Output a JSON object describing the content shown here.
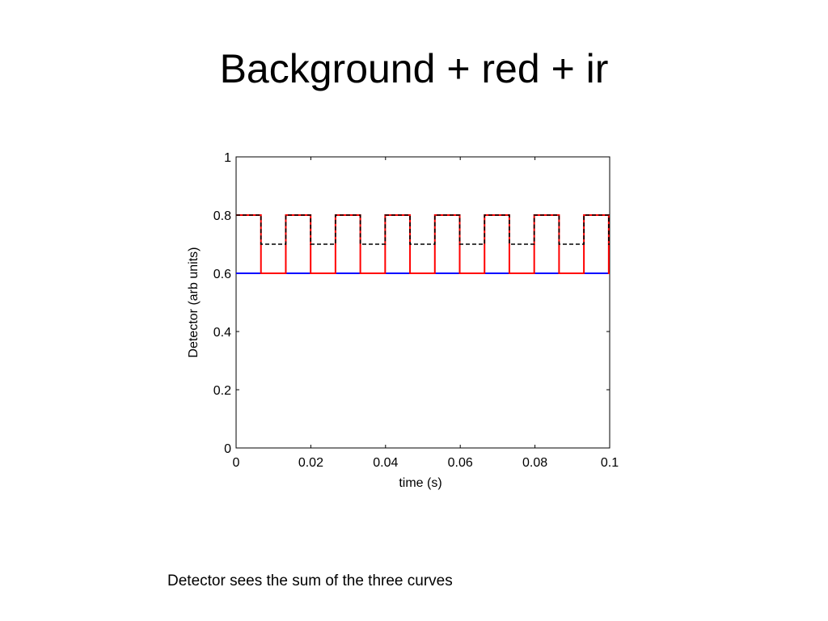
{
  "slide": {
    "title": "Background + red + ir",
    "caption": "Detector sees the sum of the three curves"
  },
  "chart_data": {
    "type": "line",
    "xlabel": "time (s)",
    "ylabel": "Detector (arb units)",
    "xlim": [
      0,
      0.1
    ],
    "ylim": [
      0,
      1
    ],
    "x_ticks": [
      "0",
      "0.02",
      "0.04",
      "0.06",
      "0.08",
      "0.1"
    ],
    "y_ticks": [
      "0",
      "0.2",
      "0.4",
      "0.6",
      "0.8",
      "1"
    ],
    "grid": false,
    "period": 0.0133,
    "duty": 0.5,
    "series": [
      {
        "key": "background",
        "style": "solid",
        "color": "#0000ff",
        "low": 0.6,
        "high": 0.6
      },
      {
        "key": "red",
        "style": "solid",
        "color": "#ff0000",
        "low": 0.6,
        "high": 0.8
      },
      {
        "key": "sum",
        "style": "dashed",
        "color": "#000000",
        "low": 0.7,
        "high": 0.8
      }
    ]
  }
}
